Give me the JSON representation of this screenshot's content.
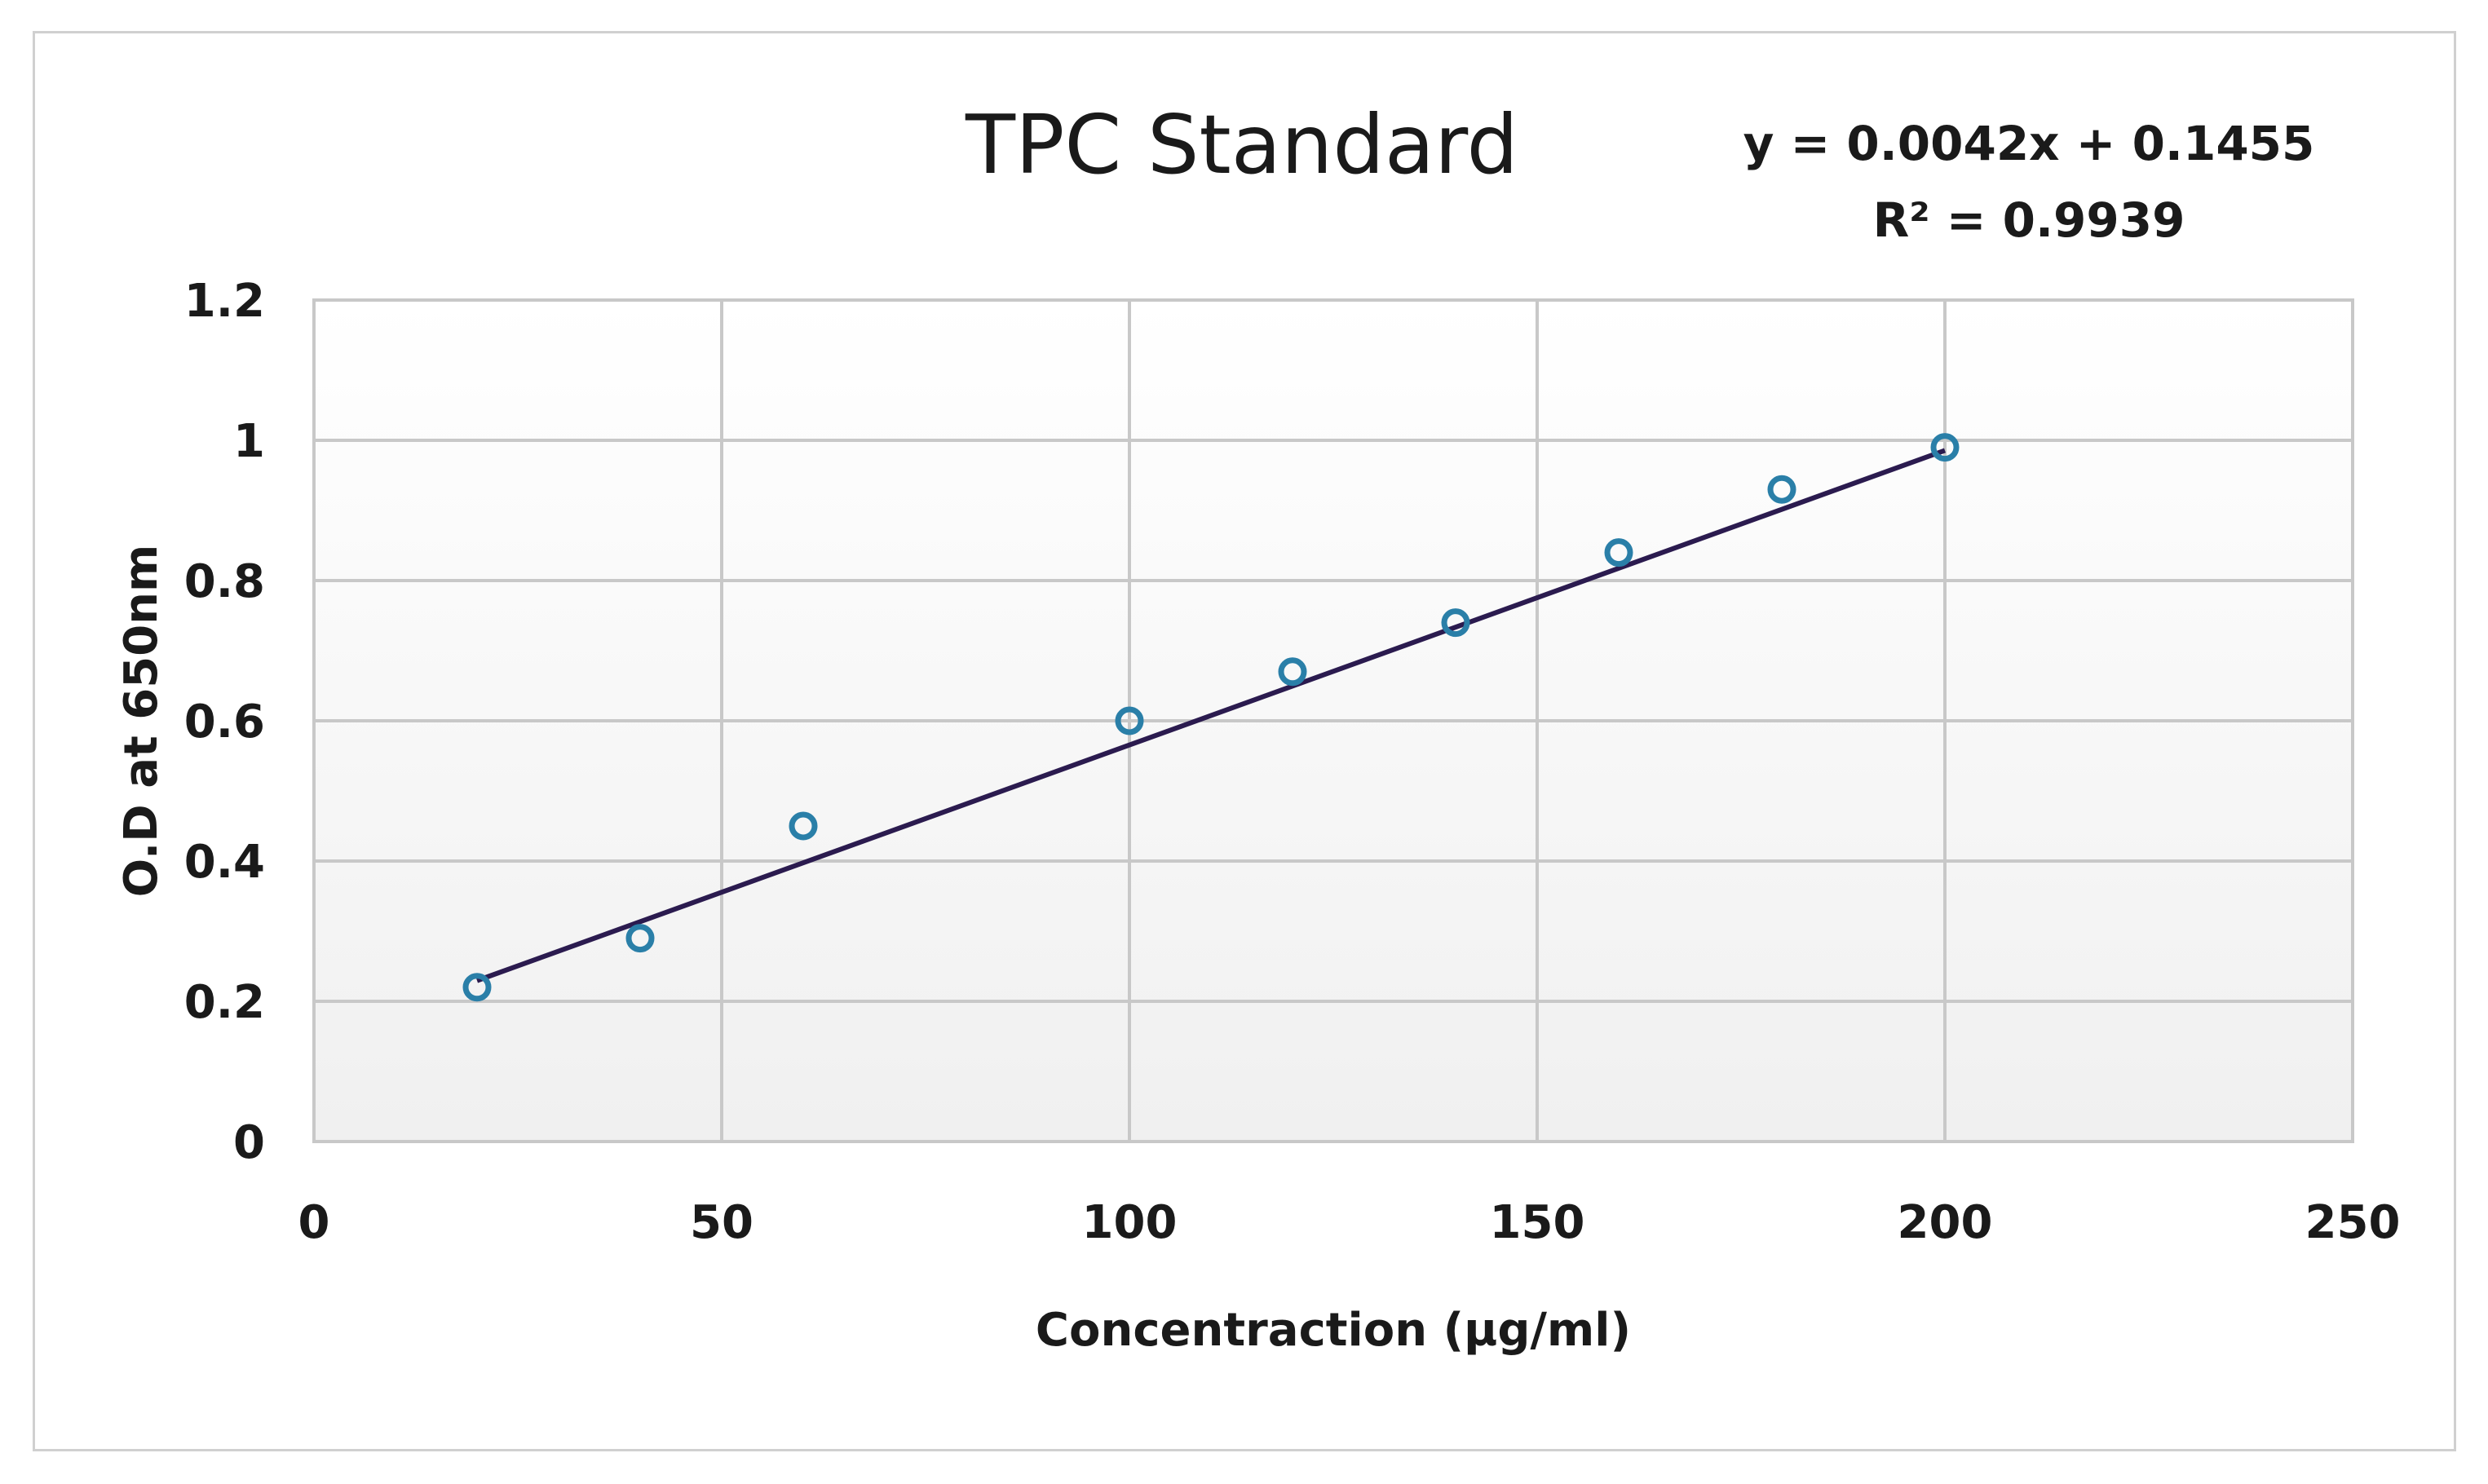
{
  "chart_data": {
    "type": "scatter",
    "title": "TPC Standard",
    "xlabel": "Concentraction (µg/ml)",
    "ylabel": "O.D at 650nm",
    "xlim": [
      0,
      250
    ],
    "ylim": [
      0,
      1.2
    ],
    "x_ticks": [
      "0",
      "50",
      "100",
      "150",
      "200",
      "250"
    ],
    "y_ticks": [
      "0",
      "0.2",
      "0.4",
      "0.6",
      "0.8",
      "1",
      "1.2"
    ],
    "grid": true,
    "series": [
      {
        "name": "TPC Standard",
        "marker": "circle",
        "x": [
          20,
          40,
          60,
          100,
          120,
          140,
          160,
          180,
          200
        ],
        "y": [
          0.22,
          0.29,
          0.45,
          0.6,
          0.67,
          0.74,
          0.84,
          0.93,
          0.99
        ]
      }
    ],
    "trendline": {
      "type": "linear",
      "slope": 0.0042,
      "intercept": 0.1455,
      "x_range": [
        20,
        200
      ],
      "equation_label": "y = 0.0042x + 0.1455",
      "r2_label": "R² = 0.9939"
    },
    "colors": {
      "marker": "#2a7fa8",
      "trendline": "#2b1b4f",
      "grid": "#c8c8c8",
      "plot_border": "#c8c8c8",
      "plot_bg_top": "#ffffff",
      "plot_bg_bottom": "#f0f0f0"
    }
  }
}
